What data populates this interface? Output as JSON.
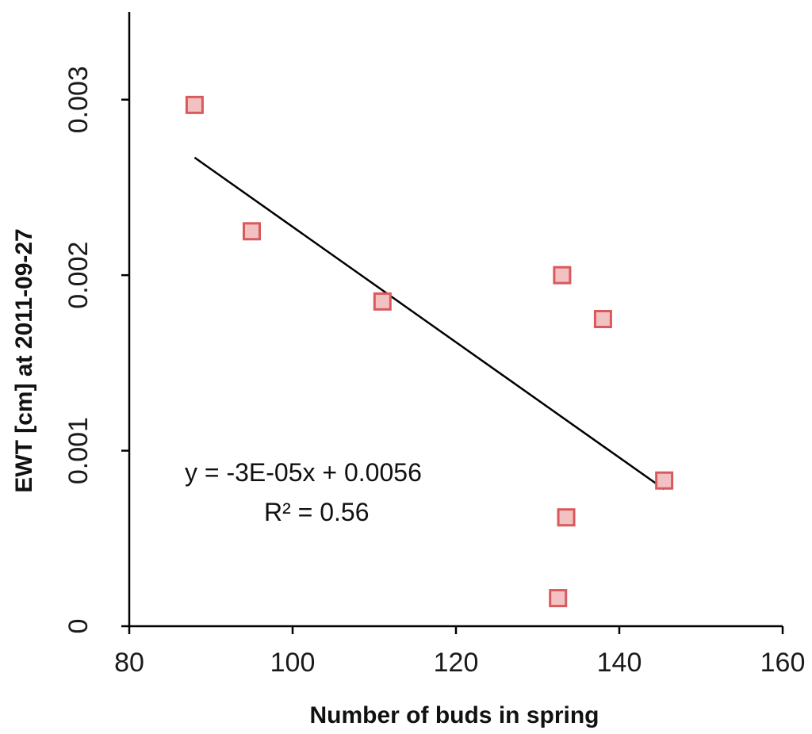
{
  "chart_data": {
    "type": "scatter",
    "xlabel": "Number of buds in spring",
    "ylabel": "EWT [cm] at 2011-09-27",
    "xlim": [
      80,
      160
    ],
    "ylim": [
      0,
      0.0035
    ],
    "x_ticks": [
      80,
      100,
      120,
      140,
      160
    ],
    "x_tick_labels": [
      "80",
      "100",
      "120",
      "140",
      "160"
    ],
    "y_ticks": [
      0,
      0.001,
      0.002,
      0.003
    ],
    "y_tick_labels": [
      "0",
      "0.001",
      "0.002",
      "0.003"
    ],
    "grid": false,
    "series": [
      {
        "marker": "square",
        "color": "#d9595c",
        "fill": "#f2c2c3",
        "points": [
          {
            "x": 88,
            "y": 0.00297
          },
          {
            "x": 95,
            "y": 0.00225
          },
          {
            "x": 111,
            "y": 0.00185
          },
          {
            "x": 133,
            "y": 0.002
          },
          {
            "x": 138,
            "y": 0.00175
          },
          {
            "x": 145.5,
            "y": 0.00083
          },
          {
            "x": 133.5,
            "y": 0.00062
          },
          {
            "x": 132.5,
            "y": 0.00016
          }
        ]
      }
    ],
    "trendline": {
      "x_start": 88,
      "x_end": 145.5,
      "y_start": 0.00267,
      "y_end": 0.00078,
      "color": "#000000"
    },
    "annotations": {
      "equation": "y = -3E-05x + 0.0056",
      "r2": "R² = 0.56"
    }
  }
}
